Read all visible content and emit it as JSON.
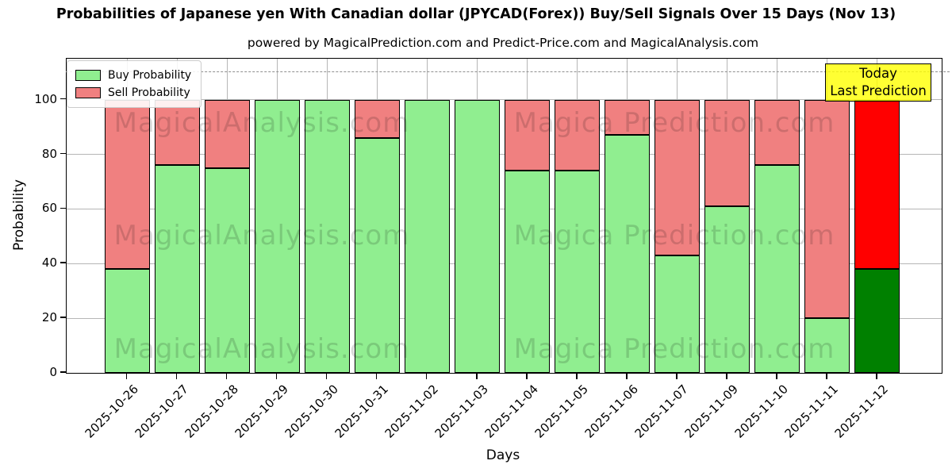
{
  "header": {
    "title": "Probabilities of Japanese yen With Canadian dollar (JPYCAD(Forex)) Buy/Sell Signals Over 15 Days (Nov 13)",
    "subtitle": "powered by MagicalPrediction.com and Predict-Price.com and MagicalAnalysis.com"
  },
  "legend": {
    "buy_label": "Buy Probability",
    "sell_label": "Sell Probability"
  },
  "today_box": {
    "line1": "Today",
    "line2": "Last Prediction"
  },
  "watermarks": {
    "left_text": "MagicalAnalysis.com",
    "right_text": "Magica Prediction.com"
  },
  "colors": {
    "buy": "#90ee90",
    "sell": "#f08080",
    "today_buy": "#008000",
    "today_sell": "#ff0000",
    "grid": "#b6b6b6",
    "today_box_bg": "#ffff00"
  },
  "chart_data": {
    "type": "bar",
    "stacked": true,
    "title": "Probabilities of Japanese yen With Canadian dollar (JPYCAD(Forex)) Buy/Sell Signals Over 15 Days (Nov 13)",
    "subtitle": "powered by MagicalPrediction.com and Predict-Price.com and MagicalAnalysis.com",
    "xlabel": "Days",
    "ylabel": "Probability",
    "ylim": [
      0,
      115
    ],
    "yticks": [
      0,
      20,
      40,
      60,
      80,
      100
    ],
    "dashed_hline": 110,
    "grid": true,
    "legend_position": "upper left",
    "categories": [
      "2025-10-26",
      "2025-10-27",
      "2025-10-28",
      "2025-10-29",
      "2025-10-30",
      "2025-10-31",
      "2025-11-02",
      "2025-11-03",
      "2025-11-04",
      "2025-11-05",
      "2025-11-06",
      "2025-11-07",
      "2025-11-09",
      "2025-11-10",
      "2025-11-11",
      "2025-11-12"
    ],
    "series": [
      {
        "name": "Buy Probability",
        "values": [
          38,
          76,
          75,
          100,
          100,
          86,
          100,
          100,
          74,
          74,
          87,
          43,
          61,
          76,
          20,
          38
        ]
      },
      {
        "name": "Sell Probability",
        "values": [
          62,
          24,
          25,
          0,
          0,
          14,
          0,
          0,
          26,
          26,
          13,
          57,
          39,
          24,
          80,
          62
        ]
      }
    ],
    "today_index": 15,
    "today_annotation": "Today\nLast Prediction"
  }
}
